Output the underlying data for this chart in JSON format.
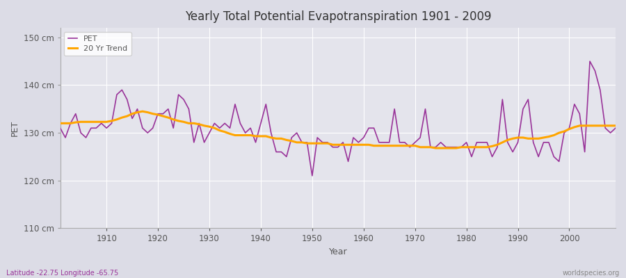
{
  "title": "Yearly Total Potential Evapotranspiration 1901 - 2009",
  "xlabel": "Year",
  "ylabel": "PET",
  "bottom_left": "Latitude -22.75 Longitude -65.75",
  "bottom_right": "worldspecies.org",
  "ylim": [
    110,
    152
  ],
  "yticks": [
    110,
    120,
    130,
    140,
    150
  ],
  "ytick_labels": [
    "110 cm",
    "120 cm",
    "130 cm",
    "140 cm",
    "150 cm"
  ],
  "pet_color": "#993399",
  "trend_color": "#FFA500",
  "bg_color": "#DCDCE6",
  "plot_bg": "#E4E4EC",
  "grid_color": "#FFFFFF",
  "years": [
    1901,
    1902,
    1903,
    1904,
    1905,
    1906,
    1907,
    1908,
    1909,
    1910,
    1911,
    1912,
    1913,
    1914,
    1915,
    1916,
    1917,
    1918,
    1919,
    1920,
    1921,
    1922,
    1923,
    1924,
    1925,
    1926,
    1927,
    1928,
    1929,
    1930,
    1931,
    1932,
    1933,
    1934,
    1935,
    1936,
    1937,
    1938,
    1939,
    1940,
    1941,
    1942,
    1943,
    1944,
    1945,
    1946,
    1947,
    1948,
    1949,
    1950,
    1951,
    1952,
    1953,
    1954,
    1955,
    1956,
    1957,
    1958,
    1959,
    1960,
    1961,
    1962,
    1963,
    1964,
    1965,
    1966,
    1967,
    1968,
    1969,
    1970,
    1971,
    1972,
    1973,
    1974,
    1975,
    1976,
    1977,
    1978,
    1979,
    1980,
    1981,
    1982,
    1983,
    1984,
    1985,
    1986,
    1987,
    1988,
    1989,
    1990,
    1991,
    1992,
    1993,
    1994,
    1995,
    1996,
    1997,
    1998,
    1999,
    2000,
    2001,
    2002,
    2003,
    2004,
    2005,
    2006,
    2007,
    2008,
    2009
  ],
  "pet": [
    131,
    129,
    132,
    134,
    130,
    129,
    131,
    131,
    132,
    131,
    132,
    138,
    139,
    137,
    133,
    135,
    131,
    130,
    131,
    134,
    134,
    135,
    131,
    138,
    137,
    135,
    128,
    132,
    128,
    130,
    132,
    131,
    132,
    131,
    136,
    132,
    130,
    131,
    128,
    132,
    136,
    130,
    126,
    126,
    125,
    129,
    130,
    128,
    128,
    121,
    129,
    128,
    128,
    127,
    127,
    128,
    124,
    129,
    128,
    129,
    131,
    131,
    128,
    128,
    128,
    135,
    128,
    128,
    127,
    128,
    129,
    135,
    127,
    127,
    128,
    127,
    127,
    127,
    127,
    128,
    125,
    128,
    128,
    128,
    125,
    127,
    137,
    128,
    126,
    128,
    135,
    137,
    128,
    125,
    128,
    128,
    125,
    124,
    130,
    131,
    136,
    134,
    126,
    145,
    143,
    139,
    131,
    130,
    131
  ],
  "trend": [
    132.0,
    132.0,
    132.0,
    132.2,
    132.3,
    132.3,
    132.3,
    132.3,
    132.3,
    132.3,
    132.5,
    132.8,
    133.2,
    133.5,
    134.0,
    134.3,
    134.5,
    134.3,
    134.0,
    133.8,
    133.5,
    133.2,
    132.8,
    132.5,
    132.3,
    132.0,
    132.0,
    131.8,
    131.5,
    131.3,
    131.0,
    130.5,
    130.2,
    129.8,
    129.5,
    129.5,
    129.5,
    129.5,
    129.3,
    129.3,
    129.3,
    129.0,
    128.8,
    128.8,
    128.5,
    128.3,
    128.0,
    128.0,
    127.8,
    127.8,
    127.8,
    127.8,
    127.8,
    127.5,
    127.5,
    127.5,
    127.5,
    127.5,
    127.5,
    127.5,
    127.5,
    127.3,
    127.3,
    127.3,
    127.3,
    127.3,
    127.3,
    127.3,
    127.3,
    127.3,
    127.0,
    127.0,
    127.0,
    126.8,
    126.8,
    126.8,
    126.8,
    126.8,
    127.0,
    127.0,
    127.0,
    127.0,
    127.0,
    127.0,
    127.2,
    127.5,
    128.0,
    128.5,
    128.8,
    129.0,
    129.0,
    128.8,
    128.8,
    128.8,
    129.0,
    129.2,
    129.5,
    130.0,
    130.3,
    130.8,
    131.2,
    131.5,
    131.5,
    131.5,
    131.5,
    131.5,
    131.5,
    131.5,
    131.5
  ]
}
